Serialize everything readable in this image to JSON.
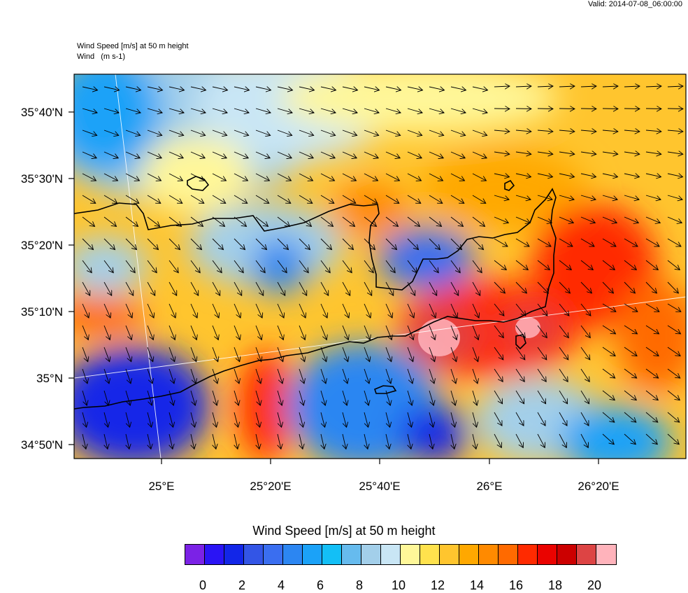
{
  "header": {
    "valid_time": "Valid: 2014-07-08_06:00:00",
    "title_line1": "Wind Speed [m/s] at 50 m height",
    "title_line2": "Wind   (m s-1)"
  },
  "map": {
    "lat_labels": [
      "35°40'N",
      "35°30'N",
      "35°20'N",
      "35°10'N",
      "35°N",
      "34°50'N"
    ],
    "lon_labels": [
      "25°E",
      "25°20'E",
      "25°40'E",
      "26°E",
      "26°20'E"
    ],
    "wind_units": "m s-1",
    "coastline_color": "#000000",
    "region": "Crete (central-east)"
  },
  "colorbar": {
    "title": "Wind Speed [m/s] at 50 m height",
    "colors": [
      "#7b22e6",
      "#2a14f5",
      "#1226e8",
      "#3355e6",
      "#3a6ef0",
      "#2c86f2",
      "#1ba2f8",
      "#13bff6",
      "#66bbee",
      "#a3cfea",
      "#c9e6f5",
      "#fff799",
      "#ffe24d",
      "#ffc52e",
      "#ffa800",
      "#ff8a00",
      "#ff6a00",
      "#ff2a00",
      "#ea0300",
      "#cc0000",
      "#dd4444",
      "#ffb3bb"
    ],
    "labels": [
      "0",
      "2",
      "4",
      "6",
      "8",
      "10",
      "12",
      "14",
      "16",
      "18",
      "20"
    ]
  }
}
